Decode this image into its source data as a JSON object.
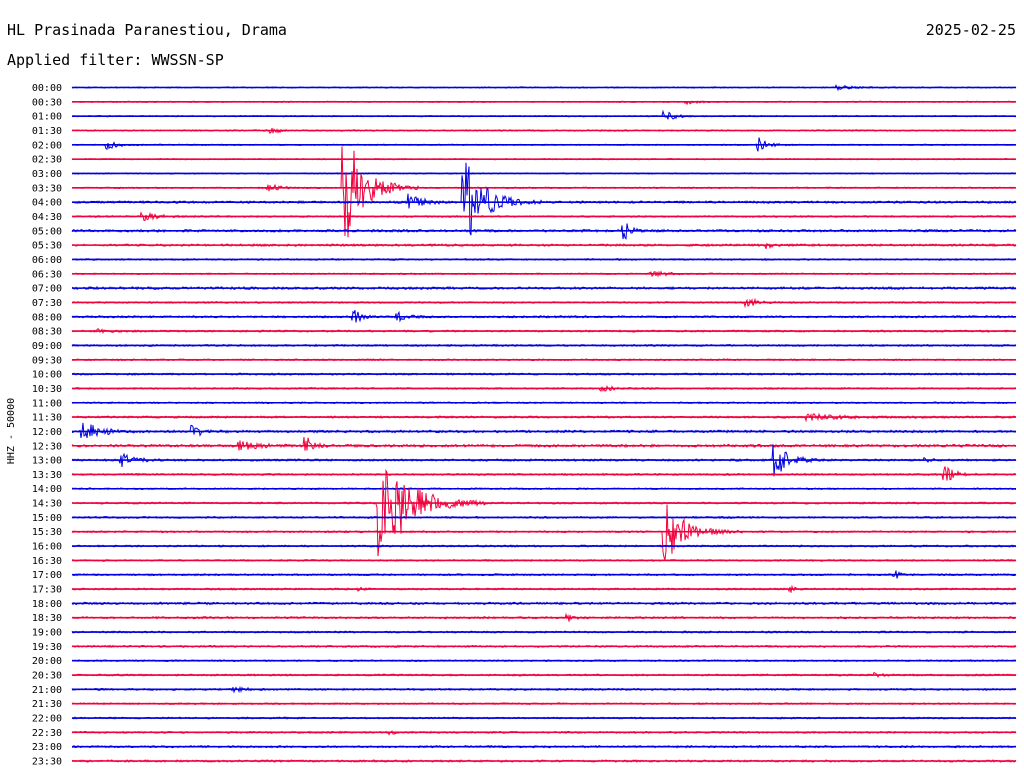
{
  "header": {
    "station": "HL Prasinada Paranestiou, Drama",
    "filter": "Applied filter: WWSSN-SP",
    "date": "2025-02-25"
  },
  "chart_data": {
    "type": "line",
    "title": "HL Prasinada Paranestiou, Drama",
    "subtitle": "Applied filter: WWSSN-SP",
    "date": "2025-02-25",
    "ylabel": "HHZ - 50000",
    "xlabel": "",
    "trace_colors": [
      "#0000e0",
      "#f0003c"
    ],
    "trace_labels": [
      "00:00",
      "00:30",
      "01:00",
      "01:30",
      "02:00",
      "02:30",
      "03:00",
      "03:30",
      "04:00",
      "04:30",
      "05:00",
      "05:30",
      "06:00",
      "06:30",
      "07:00",
      "07:30",
      "08:00",
      "08:30",
      "09:00",
      "09:30",
      "10:00",
      "10:30",
      "11:00",
      "11:30",
      "12:00",
      "12:30",
      "13:00",
      "13:30",
      "14:00",
      "14:30",
      "15:00",
      "15:30",
      "16:00",
      "16:30",
      "17:00",
      "17:30",
      "18:00",
      "18:30",
      "19:00",
      "19:30",
      "20:00",
      "20:30",
      "21:00",
      "21:30",
      "22:00",
      "22:30",
      "23:00",
      "23:30"
    ],
    "trace_minutes": 30,
    "noise": [
      0.6,
      0.6,
      0.6,
      0.7,
      0.6,
      0.6,
      0.6,
      0.7,
      1.1,
      0.8,
      1.2,
      1.1,
      0.8,
      0.7,
      1.2,
      0.8,
      1.0,
      0.9,
      0.9,
      0.8,
      0.9,
      0.8,
      0.8,
      1.0,
      1.2,
      1.3,
      1.0,
      0.9,
      0.8,
      0.9,
      0.9,
      0.9,
      0.9,
      0.8,
      0.9,
      0.9,
      1.1,
      1.0,
      0.9,
      0.9,
      0.8,
      0.9,
      0.9,
      0.8,
      0.8,
      0.9,
      1.0,
      1.0
    ],
    "events": [
      {
        "trace": "00:00",
        "minute": 24.3,
        "amplitude": 2.0,
        "duration_min": 1.5
      },
      {
        "trace": "00:30",
        "minute": 19.5,
        "amplitude": 2.0,
        "duration_min": 0.8
      },
      {
        "trace": "01:00",
        "minute": 18.8,
        "amplitude": 5.0,
        "duration_min": 0.8
      },
      {
        "trace": "01:30",
        "minute": 6.3,
        "amplitude": 3.0,
        "duration_min": 0.6
      },
      {
        "trace": "02:00",
        "minute": 1.1,
        "amplitude": 4.0,
        "duration_min": 0.9
      },
      {
        "trace": "02:00",
        "minute": 21.7,
        "amplitude": 8.0,
        "duration_min": 0.9
      },
      {
        "trace": "03:30",
        "minute": 6.2,
        "amplitude": 4.0,
        "duration_min": 0.8
      },
      {
        "trace": "03:30",
        "minute": 8.6,
        "amplitude": 60.0,
        "duration_min": 1.8
      },
      {
        "trace": "04:00",
        "minute": 10.7,
        "amplitude": 8.0,
        "duration_min": 1.0
      },
      {
        "trace": "04:00",
        "minute": 12.4,
        "amplitude": 45.0,
        "duration_min": 1.8
      },
      {
        "trace": "04:30",
        "minute": 2.2,
        "amplitude": 4.0,
        "duration_min": 1.3
      },
      {
        "trace": "05:00",
        "minute": 17.5,
        "amplitude": 8.0,
        "duration_min": 0.6
      },
      {
        "trace": "05:30",
        "minute": 22.0,
        "amplitude": 3.0,
        "duration_min": 0.4
      },
      {
        "trace": "06:30",
        "minute": 18.4,
        "amplitude": 3.0,
        "duration_min": 1.2
      },
      {
        "trace": "07:30",
        "minute": 21.4,
        "amplitude": 5.0,
        "duration_min": 0.8
      },
      {
        "trace": "08:00",
        "minute": 8.9,
        "amplitude": 6.0,
        "duration_min": 0.7
      },
      {
        "trace": "08:00",
        "minute": 10.3,
        "amplitude": 4.0,
        "duration_min": 0.9
      },
      {
        "trace": "08:30",
        "minute": 0.8,
        "amplitude": 2.0,
        "duration_min": 1.0
      },
      {
        "trace": "10:30",
        "minute": 16.8,
        "amplitude": 2.0,
        "duration_min": 1.5
      },
      {
        "trace": "11:30",
        "minute": 23.3,
        "amplitude": 3.0,
        "duration_min": 2.8
      },
      {
        "trace": "12:00",
        "minute": 0.3,
        "amplitude": 9.0,
        "duration_min": 1.5
      },
      {
        "trace": "12:00",
        "minute": 3.8,
        "amplitude": 5.0,
        "duration_min": 0.9
      },
      {
        "trace": "12:30",
        "minute": 5.3,
        "amplitude": 4.0,
        "duration_min": 1.6
      },
      {
        "trace": "12:30",
        "minute": 7.4,
        "amplitude": 8.0,
        "duration_min": 0.6
      },
      {
        "trace": "13:00",
        "minute": 1.5,
        "amplitude": 6.0,
        "duration_min": 1.2
      },
      {
        "trace": "13:00",
        "minute": 22.3,
        "amplitude": 16.0,
        "duration_min": 1.2
      },
      {
        "trace": "13:00",
        "minute": 27.1,
        "amplitude": 2.0,
        "duration_min": 0.4
      },
      {
        "trace": "13:30",
        "minute": 27.7,
        "amplitude": 8.0,
        "duration_min": 0.8
      },
      {
        "trace": "14:30",
        "minute": 9.7,
        "amplitude": 70.0,
        "duration_min": 2.5
      },
      {
        "trace": "15:30",
        "minute": 18.8,
        "amplitude": 30.0,
        "duration_min": 1.8
      },
      {
        "trace": "17:00",
        "minute": 26.1,
        "amplitude": 4.0,
        "duration_min": 0.3
      },
      {
        "trace": "17:30",
        "minute": 9.1,
        "amplitude": 2.0,
        "duration_min": 0.3
      },
      {
        "trace": "17:30",
        "minute": 22.8,
        "amplitude": 3.0,
        "duration_min": 0.3
      },
      {
        "trace": "18:30",
        "minute": 15.7,
        "amplitude": 3.0,
        "duration_min": 0.5
      },
      {
        "trace": "20:30",
        "minute": 25.5,
        "amplitude": 2.0,
        "duration_min": 0.5
      },
      {
        "trace": "21:00",
        "minute": 5.1,
        "amplitude": 3.0,
        "duration_min": 0.8
      },
      {
        "trace": "22:30",
        "minute": 10.1,
        "amplitude": 2.0,
        "duration_min": 0.2
      }
    ]
  }
}
